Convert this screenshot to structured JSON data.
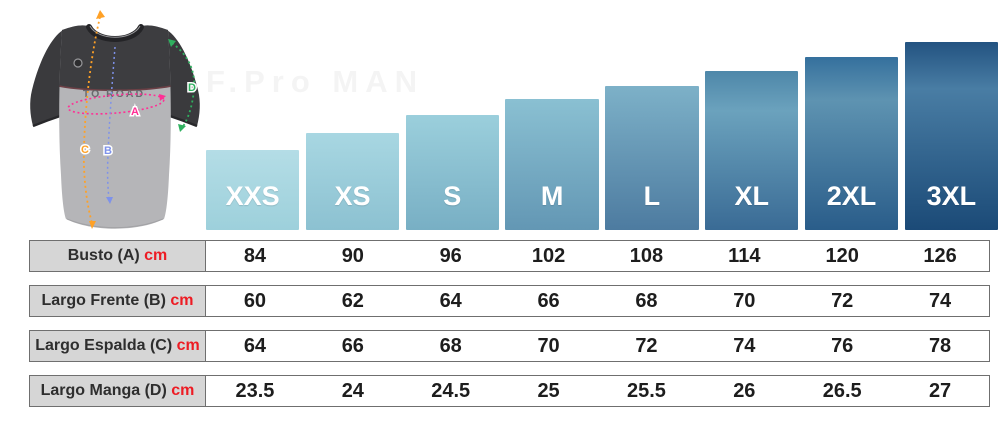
{
  "watermark": {
    "text": "F.Pro MAN"
  },
  "jersey": {
    "brand_text": "TO ROAD",
    "measurements": [
      {
        "letter": "A",
        "color": "#ff2f95"
      },
      {
        "letter": "B",
        "color": "#7e92ea"
      },
      {
        "letter": "C",
        "color": "#ffa126"
      },
      {
        "letter": "D",
        "color": "#2fb05f"
      }
    ]
  },
  "chart_data": [
    {
      "type": "bar",
      "title": "",
      "categories": [
        "XXS",
        "XS",
        "S",
        "M",
        "L",
        "XL",
        "2XL",
        "3XL"
      ],
      "values": [
        80,
        97,
        115,
        131,
        144,
        159,
        173,
        188
      ],
      "value_unit": "px-bar-height (bars encode size progression only, no axis shown)",
      "label_color": "#ffffff",
      "colors": [
        {
          "light": "#b4dde6",
          "dark": "#9dd0db"
        },
        {
          "light": "#a8d7e2",
          "dark": "#8cc1d1"
        },
        {
          "light": "#9bcfdc",
          "dark": "#78afc4"
        },
        {
          "light": "#8ac0d2",
          "dark": "#6397b4"
        },
        {
          "light": "#7db1c8",
          "dark": "#4d7ba0"
        },
        {
          "top": "#4e87a9",
          "light": "#6ba2bd",
          "dark": "#3a6b95"
        },
        {
          "top": "#35709d",
          "light": "#5e93b1",
          "dark": "#2a5d8a"
        },
        {
          "top": "#235381",
          "light": "#497da4",
          "dark": "#1b4a77"
        }
      ]
    },
    {
      "type": "table",
      "columns": [
        "XXS",
        "XS",
        "S",
        "M",
        "L",
        "XL",
        "2XL",
        "3XL"
      ],
      "rows": [
        {
          "label": "Busto (A)",
          "unit": "cm",
          "values": [
            "84",
            "90",
            "96",
            "102",
            "108",
            "114",
            "120",
            "126"
          ]
        },
        {
          "label": "Largo Frente (B)",
          "unit": "cm",
          "values": [
            "60",
            "62",
            "64",
            "66",
            "68",
            "70",
            "72",
            "74"
          ]
        },
        {
          "label": "Largo Espalda (C)",
          "unit": "cm",
          "values": [
            "64",
            "66",
            "68",
            "70",
            "72",
            "74",
            "76",
            "78"
          ]
        },
        {
          "label": "Largo Manga (D)",
          "unit": "cm",
          "values": [
            "23.5",
            "24",
            "24.5",
            "25",
            "25.5",
            "26",
            "26.5",
            "27"
          ]
        }
      ]
    }
  ],
  "table_style": {
    "unit_color": "#ed1c24",
    "label_bg": "#d6d6d6",
    "border_color": "#6f6f6f",
    "value_color": "#1d1d1d"
  }
}
